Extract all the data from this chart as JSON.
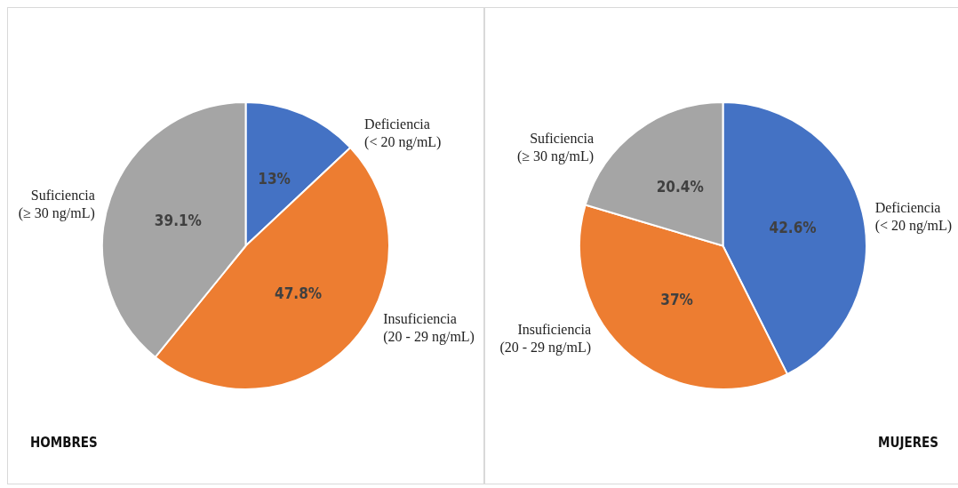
{
  "chart_data": [
    {
      "type": "pie",
      "title": "HOMBRES",
      "categories": [
        "Deficiencia (< 20 ng/mL)",
        "Insuficiencia (20 - 29 ng/mL)",
        "Suficiencia (≥ 30 ng/mL)"
      ],
      "values": [
        13,
        47.8,
        39.1
      ],
      "value_labels": [
        "13%",
        "47.8%",
        "39.1%"
      ],
      "colors": [
        "#4472c4",
        "#ed7d31",
        "#a5a5a5"
      ],
      "legend": false
    },
    {
      "type": "pie",
      "title": "MUJERES",
      "categories": [
        "Deficiencia (< 20 ng/mL)",
        "Insuficiencia (20 - 29 ng/mL)",
        "Suficiencia (≥ 30 ng/mL)"
      ],
      "values": [
        42.6,
        37,
        20.4
      ],
      "value_labels": [
        "42.6%",
        "37%",
        "20.4%"
      ],
      "colors": [
        "#4472c4",
        "#ed7d31",
        "#a5a5a5"
      ],
      "legend": false
    }
  ]
}
